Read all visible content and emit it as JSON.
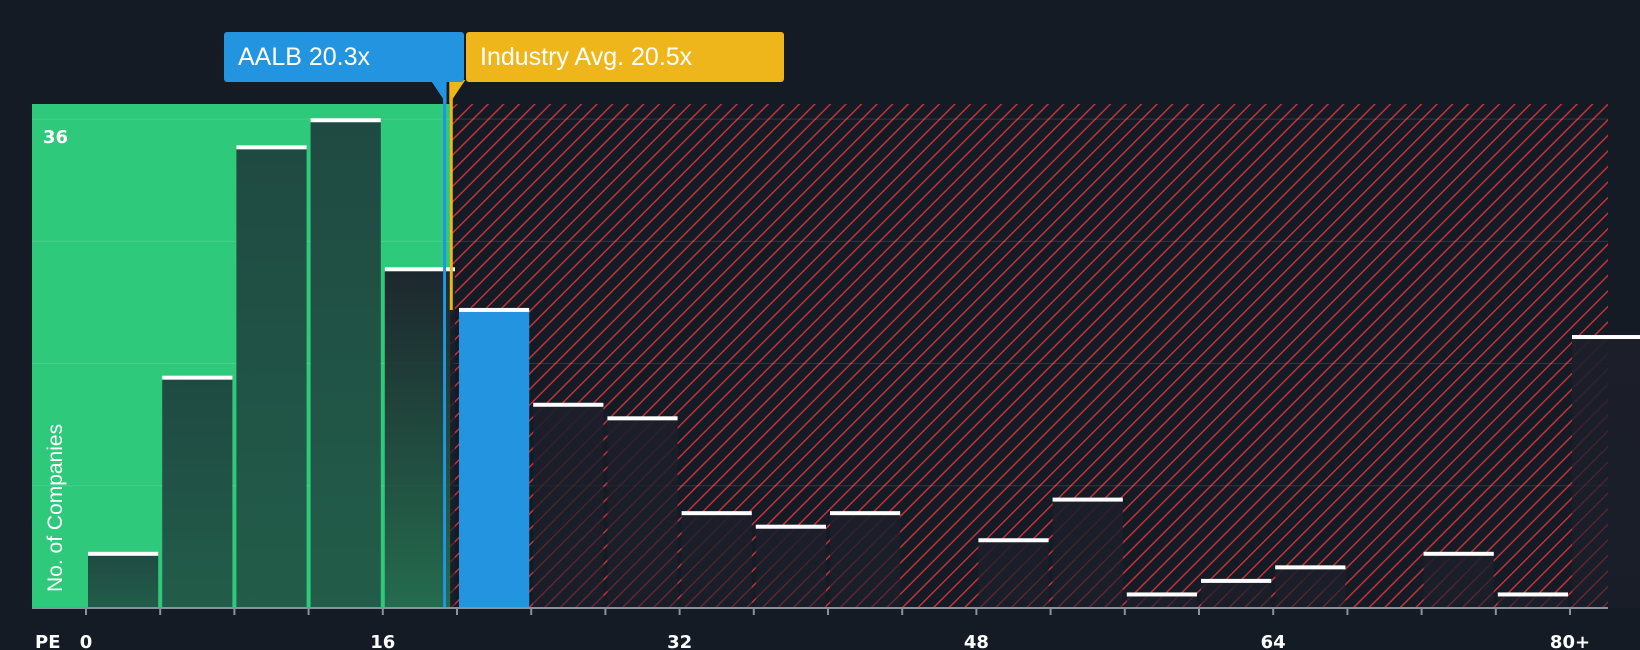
{
  "chart_data": {
    "type": "bar",
    "metric": "PE",
    "ylabel": "No. of Companies",
    "ymax_label": "36",
    "ylim": [
      0,
      37.2
    ],
    "xlim": [
      0,
      80
    ],
    "x_ticks": [
      "0",
      "16",
      "32",
      "48",
      "64",
      "80+"
    ],
    "bin_width": 4,
    "bins": [
      {
        "start": 0,
        "value": 4
      },
      {
        "start": 4,
        "value": 17
      },
      {
        "start": 8,
        "value": 34
      },
      {
        "start": 12,
        "value": 36
      },
      {
        "start": 16,
        "value": 25
      },
      {
        "start": 20,
        "value": 22,
        "highlight": true
      },
      {
        "start": 24,
        "value": 15
      },
      {
        "start": 28,
        "value": 14
      },
      {
        "start": 32,
        "value": 7
      },
      {
        "start": 36,
        "value": 6
      },
      {
        "start": 40,
        "value": 7
      },
      {
        "start": 44,
        "value": 0
      },
      {
        "start": 48,
        "value": 5
      },
      {
        "start": 52,
        "value": 8
      },
      {
        "start": 56,
        "value": 1
      },
      {
        "start": 60,
        "value": 2
      },
      {
        "start": 64,
        "value": 3
      },
      {
        "start": 68,
        "value": 0
      },
      {
        "start": 72,
        "value": 4
      },
      {
        "start": 76,
        "value": 1
      },
      {
        "start": 80,
        "value": 20
      }
    ],
    "company": {
      "ticker": "AALB",
      "value": 20.3,
      "label": "AALB 20.3x",
      "color": "#2394e0"
    },
    "industry": {
      "label": "Industry Avg. 20.5x",
      "value": 20.5,
      "color": "#efb61b"
    },
    "colors": {
      "background": "#151b24",
      "good_zone": "#2ec97a",
      "bar_in_zone": "#1f4c40",
      "bad_zone": "#8c1f28",
      "hatch": "#d23a3a",
      "bar_cap": "#ffffff",
      "highlight_bar": "#2394e0"
    }
  }
}
